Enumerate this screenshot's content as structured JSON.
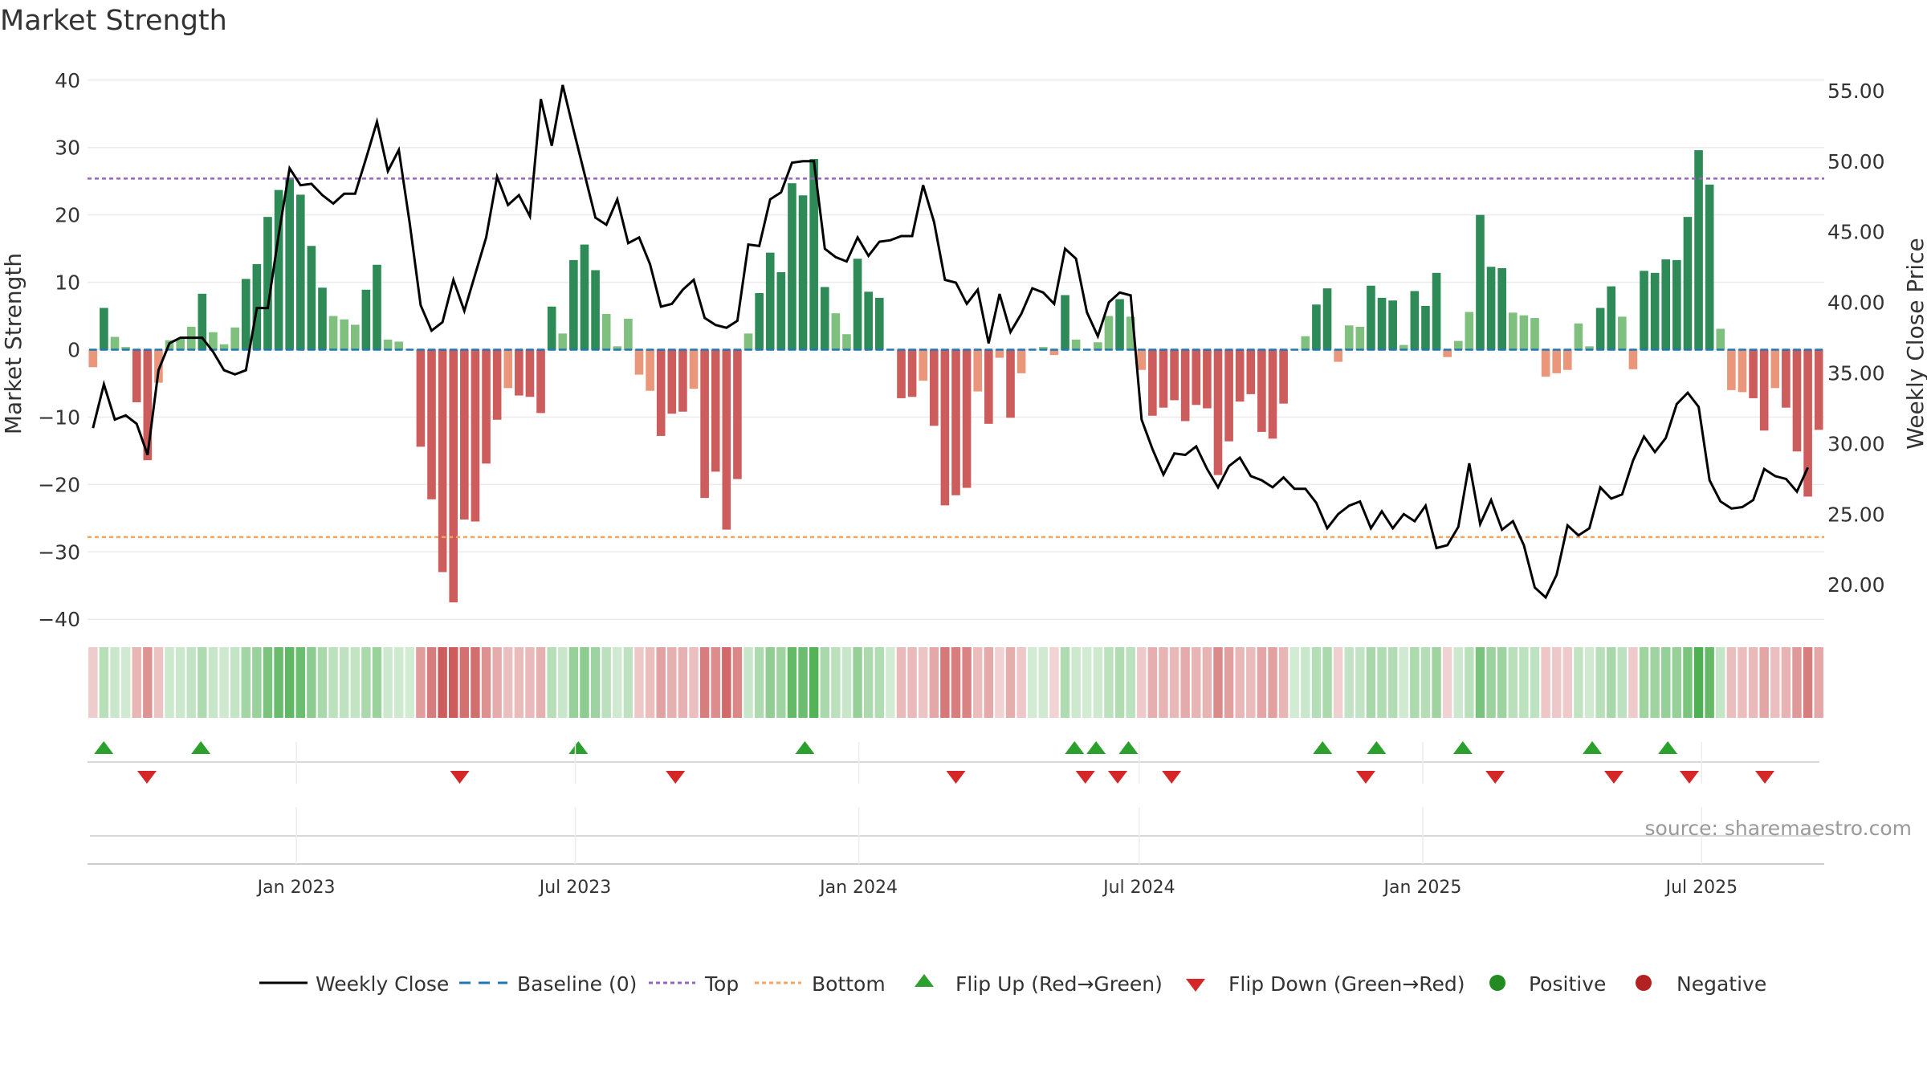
{
  "chart_data": {
    "type": "bar",
    "title": "Market Strength",
    "ylabel_left": "Market Strength",
    "ylabel_right": "Weekly Close Price",
    "source": "source: sharemaestro.com",
    "ylim_left": [
      -42,
      42
    ],
    "ylim_right": [
      16.6,
      56.7
    ],
    "yticks_left": [
      40,
      30,
      20,
      10,
      0,
      -10,
      -20,
      -30,
      -40
    ],
    "yticks_left_labels": [
      "40",
      "30",
      "20",
      "10",
      "0",
      "−10",
      "−20",
      "−30",
      "−40"
    ],
    "yticks_right": [
      55,
      50,
      45,
      40,
      35,
      30,
      25,
      20
    ],
    "yticks_right_labels": [
      "55.00",
      "50.00",
      "45.00",
      "40.00",
      "35.00",
      "30.00",
      "25.00",
      "20.00"
    ],
    "x_date_range": [
      "2022-08-22",
      "2025-09-15"
    ],
    "xtick_dates": [
      "2023-01-01",
      "2023-07-01",
      "2024-01-01",
      "2024-07-01",
      "2025-01-01",
      "2025-07-01"
    ],
    "xtick_labels": [
      "Jan 2023",
      "Jul 2023",
      "Jan 2024",
      "Jul 2024",
      "Jan 2025",
      "Jul 2025"
    ],
    "top_level": 25.4,
    "bottom_level": -27.8,
    "baseline": 0,
    "strength": [
      -2.6,
      6.2,
      1.9,
      0.4,
      -7.8,
      -16.4,
      -4.9,
      1.4,
      1.6,
      3.4,
      8.3,
      2.6,
      0.8,
      3.3,
      10.5,
      12.7,
      19.7,
      23.7,
      25.5,
      23.0,
      15.4,
      9.2,
      5.0,
      4.5,
      3.7,
      8.9,
      12.6,
      1.5,
      1.2,
      0,
      -14.4,
      -22.2,
      -33.0,
      -37.5,
      -25.2,
      -25.5,
      -16.9,
      -10.4,
      -5.7,
      -6.8,
      -7.0,
      -9.4,
      6.4,
      2.4,
      13.3,
      15.6,
      11.8,
      5.3,
      0.5,
      4.6,
      -3.7,
      -6.1,
      -12.8,
      -9.5,
      -9.2,
      -5.8,
      -22.0,
      -18.1,
      -26.7,
      -19.2,
      2.4,
      8.4,
      14.4,
      11.5,
      24.7,
      22.9,
      28.3,
      9.3,
      5.4,
      2.3,
      13.5,
      8.6,
      7.7,
      0,
      -7.2,
      -7.0,
      -4.6,
      -11.3,
      -23.1,
      -21.6,
      -20.5,
      -6.2,
      -11.0,
      -1.2,
      -10.1,
      -3.5,
      0,
      0.4,
      -0.8,
      8.1,
      1.5,
      0,
      1.1,
      5.0,
      7.5,
      4.9,
      -3.0,
      -9.8,
      -8.6,
      -7.5,
      -10.6,
      -8.2,
      -8.7,
      -18.6,
      -13.6,
      -7.7,
      -6.6,
      -12.2,
      -13.2,
      -8.0,
      0,
      2.0,
      6.7,
      9.1,
      -1.8,
      3.6,
      3.4,
      9.5,
      7.7,
      7.3,
      0.7,
      8.7,
      6.5,
      11.4,
      -1.1,
      1.3,
      5.6,
      20.0,
      12.3,
      12.1,
      5.5,
      5.1,
      4.7,
      -4.0,
      -3.5,
      -3.0,
      3.9,
      0.5,
      6.2,
      9.4,
      4.9,
      -2.9,
      11.7,
      11.4,
      13.4,
      13.3,
      19.7,
      29.6,
      24.5,
      3.1,
      -6.0,
      -6.3,
      -7.2,
      -12.0,
      -5.7,
      -8.6,
      -15.1,
      -21.8,
      -11.9
    ],
    "weekly_close": [
      31.1,
      34.2,
      31.7,
      32.0,
      31.4,
      29.2,
      35.2,
      37.1,
      37.5,
      37.5,
      37.5,
      36.5,
      35.2,
      34.9,
      35.2,
      39.6,
      39.6,
      44.8,
      49.5,
      48.3,
      48.4,
      47.6,
      47.0,
      47.7,
      47.7,
      50.2,
      52.8,
      49.3,
      50.8,
      45.6,
      39.8,
      38.0,
      38.6,
      41.6,
      39.4,
      42.0,
      44.6,
      48.9,
      46.9,
      47.6,
      46.1,
      54.4,
      51.1,
      55.4,
      52.2,
      49.1,
      46.0,
      45.5,
      47.3,
      44.2,
      44.6,
      42.7,
      39.7,
      39.9,
      40.9,
      41.6,
      38.9,
      38.4,
      38.2,
      38.7,
      44.1,
      44.0,
      47.3,
      47.8,
      49.9,
      50.0,
      50.0,
      43.8,
      43.2,
      42.9,
      44.6,
      43.3,
      44.3,
      44.4,
      44.7,
      44.7,
      48.3,
      45.7,
      41.6,
      41.4,
      39.9,
      40.9,
      37.1,
      40.6,
      37.9,
      39.2,
      41.0,
      40.7,
      39.9,
      43.8,
      43.1,
      39.3,
      37.6,
      40.0,
      40.7,
      40.5,
      31.7,
      29.6,
      27.8,
      29.3,
      29.2,
      29.8,
      28.2,
      26.9,
      28.4,
      29.0,
      27.7,
      27.4,
      26.9,
      27.6,
      26.8,
      26.8,
      25.8,
      24.0,
      25.0,
      25.6,
      25.9,
      24.0,
      25.2,
      24.0,
      25.0,
      24.5,
      25.6,
      22.6,
      22.8,
      24.1,
      28.6,
      24.3,
      26.0,
      23.9,
      24.5,
      22.8,
      19.8,
      19.1,
      20.7,
      24.2,
      23.5,
      24.0,
      26.9,
      26.1,
      26.4,
      28.8,
      30.5,
      29.4,
      30.4,
      32.8,
      33.6,
      32.6,
      27.4,
      25.9,
      25.4,
      25.5,
      26.0,
      28.2,
      27.7,
      27.5,
      26.6,
      28.3
    ],
    "flip_up_dates": [
      "2022-08-29",
      "2022-10-31",
      "2023-07-03",
      "2023-11-27",
      "2024-05-20",
      "2024-06-03",
      "2024-06-24",
      "2024-10-28",
      "2024-12-02",
      "2025-01-27",
      "2025-04-21",
      "2025-06-09"
    ],
    "flip_down_dates": [
      "2022-09-26",
      "2023-04-17",
      "2023-09-04",
      "2024-03-04",
      "2024-05-27",
      "2024-06-17",
      "2024-07-22",
      "2024-11-25",
      "2025-02-17",
      "2025-05-05",
      "2025-06-23",
      "2025-08-11"
    ],
    "legend": {
      "weekly_close": "Weekly Close",
      "baseline": "Baseline (0)",
      "top": "Top",
      "bottom": "Bottom",
      "flip_up": "Flip Up (Red→Green)",
      "flip_down": "Flip Down (Green→Red)",
      "positive": "Positive",
      "negative": "Negative"
    },
    "colors": {
      "strong_green": "#2e8b57",
      "light_green": "#7fc07f",
      "strong_red": "#cd5c5c",
      "light_red": "#e9967a",
      "top_line": "#9467bd",
      "bottom_line": "#f4a460",
      "baseline": "#1f77b4",
      "close_line": "#000000",
      "flip_up": "#2ca02c",
      "flip_down": "#d62728",
      "positive_dot": "#228b22",
      "negative_dot": "#b22222",
      "grid": "#ebebeb",
      "text": "#333333"
    }
  }
}
